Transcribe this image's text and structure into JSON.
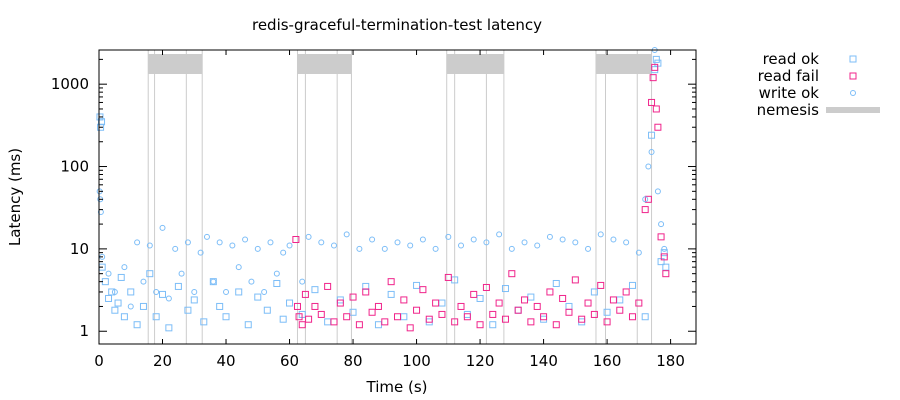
{
  "chart_data": {
    "type": "scatter",
    "title": "redis-graceful-termination-test latency",
    "xlabel": "Time (s)",
    "ylabel": "Latency (ms)",
    "xlim": [
      0,
      188
    ],
    "ylim": [
      0.7,
      2600
    ],
    "y_scale": "log",
    "x_ticks": [
      0,
      20,
      40,
      60,
      80,
      100,
      120,
      140,
      160,
      180
    ],
    "y_ticks": [
      1,
      10,
      100,
      1000
    ],
    "grid": false,
    "legend_position": "right-outside",
    "colors": {
      "read_ok": "#7cbdf7",
      "read_fail": "#f0248b",
      "write_ok": "#7cbdf7",
      "nemesis": "#cccccc"
    },
    "legend": [
      {
        "label": "read ok",
        "marker": "square",
        "color": "#7cbdf7"
      },
      {
        "label": "read fail",
        "marker": "square",
        "color": "#f0248b"
      },
      {
        "label": "write ok",
        "marker": "circle",
        "color": "#7cbdf7"
      },
      {
        "label": "nemesis",
        "marker": "bar",
        "color": "#cccccc"
      }
    ],
    "nemesis": [
      {
        "start": 15.5,
        "end": 32.5,
        "lines": [
          15.5,
          17.5,
          27.5,
          32.5
        ]
      },
      {
        "start": 62.5,
        "end": 79.5,
        "lines": [
          62.5,
          65,
          75,
          79.5
        ]
      },
      {
        "start": 109.5,
        "end": 127.5,
        "lines": [
          109.5,
          112,
          122,
          127.5
        ]
      },
      {
        "start": 156.5,
        "end": 174,
        "lines": [
          156.5,
          159.5,
          169.5,
          174
        ]
      }
    ],
    "series": [
      {
        "name": "read ok",
        "marker": "square",
        "points": [
          [
            0.3,
            400
          ],
          [
            0.5,
            300
          ],
          [
            0.8,
            350
          ],
          [
            1,
            6
          ],
          [
            2,
            4
          ],
          [
            3,
            2.5
          ],
          [
            4,
            3
          ],
          [
            5,
            1.8
          ],
          [
            6,
            2.2
          ],
          [
            7,
            4.5
          ],
          [
            8,
            1.5
          ],
          [
            10,
            3
          ],
          [
            12,
            1.2
          ],
          [
            14,
            2
          ],
          [
            16,
            5
          ],
          [
            18,
            1.5
          ],
          [
            20,
            2.8
          ],
          [
            22,
            1.1
          ],
          [
            25,
            3.5
          ],
          [
            28,
            1.8
          ],
          [
            30,
            2.4
          ],
          [
            33,
            1.3
          ],
          [
            36,
            4
          ],
          [
            38,
            2
          ],
          [
            40,
            1.5
          ],
          [
            44,
            3
          ],
          [
            47,
            1.2
          ],
          [
            50,
            2.6
          ],
          [
            53,
            1.8
          ],
          [
            56,
            3.8
          ],
          [
            58,
            1.4
          ],
          [
            60,
            2.2
          ],
          [
            64,
            1.6
          ],
          [
            68,
            3.2
          ],
          [
            72,
            1.3
          ],
          [
            76,
            2.4
          ],
          [
            80,
            1.7
          ],
          [
            84,
            3.5
          ],
          [
            88,
            1.2
          ],
          [
            92,
            2.8
          ],
          [
            96,
            1.5
          ],
          [
            100,
            3.6
          ],
          [
            104,
            1.3
          ],
          [
            108,
            2.2
          ],
          [
            112,
            4.2
          ],
          [
            116,
            1.6
          ],
          [
            120,
            2.5
          ],
          [
            124,
            1.2
          ],
          [
            128,
            3.3
          ],
          [
            132,
            1.8
          ],
          [
            136,
            2.6
          ],
          [
            140,
            1.4
          ],
          [
            144,
            3.8
          ],
          [
            148,
            2
          ],
          [
            152,
            1.3
          ],
          [
            156,
            3
          ],
          [
            160,
            1.7
          ],
          [
            164,
            2.4
          ],
          [
            168,
            3.6
          ],
          [
            172,
            1.5
          ],
          [
            174,
            240
          ],
          [
            175,
            1500
          ],
          [
            175.5,
            2000
          ],
          [
            176,
            1800
          ],
          [
            177,
            7
          ],
          [
            178,
            9
          ],
          [
            178.5,
            6
          ]
        ]
      },
      {
        "name": "read fail",
        "marker": "square",
        "points": [
          [
            62,
            13
          ],
          [
            62.5,
            2
          ],
          [
            63,
            1.5
          ],
          [
            64,
            1.2
          ],
          [
            65,
            2.8
          ],
          [
            66,
            1.4
          ],
          [
            68,
            2
          ],
          [
            70,
            1.6
          ],
          [
            72,
            3.5
          ],
          [
            74,
            1.3
          ],
          [
            76,
            2.2
          ],
          [
            78,
            1.5
          ],
          [
            80,
            2.6
          ],
          [
            82,
            1.2
          ],
          [
            84,
            3
          ],
          [
            86,
            1.7
          ],
          [
            88,
            2
          ],
          [
            90,
            1.3
          ],
          [
            92,
            4
          ],
          [
            94,
            1.5
          ],
          [
            96,
            2.4
          ],
          [
            98,
            1.1
          ],
          [
            100,
            1.8
          ],
          [
            102,
            3.2
          ],
          [
            104,
            1.4
          ],
          [
            106,
            2.2
          ],
          [
            108,
            1.6
          ],
          [
            110,
            4.5
          ],
          [
            112,
            1.3
          ],
          [
            114,
            2
          ],
          [
            116,
            1.5
          ],
          [
            118,
            2.8
          ],
          [
            120,
            1.2
          ],
          [
            122,
            3.4
          ],
          [
            124,
            1.6
          ],
          [
            126,
            2.2
          ],
          [
            128,
            1.4
          ],
          [
            130,
            5
          ],
          [
            132,
            1.8
          ],
          [
            134,
            2.4
          ],
          [
            136,
            1.3
          ],
          [
            138,
            2
          ],
          [
            140,
            1.5
          ],
          [
            142,
            3
          ],
          [
            144,
            1.2
          ],
          [
            146,
            2.5
          ],
          [
            148,
            1.7
          ],
          [
            150,
            4.2
          ],
          [
            152,
            1.4
          ],
          [
            154,
            2.2
          ],
          [
            156,
            1.6
          ],
          [
            158,
            3.6
          ],
          [
            160,
            1.3
          ],
          [
            162,
            2.4
          ],
          [
            164,
            1.8
          ],
          [
            166,
            3
          ],
          [
            168,
            1.5
          ],
          [
            170,
            2.2
          ],
          [
            172,
            30
          ],
          [
            173,
            40
          ],
          [
            174,
            600
          ],
          [
            174.5,
            1200
          ],
          [
            175,
            1600
          ],
          [
            175.5,
            500
          ],
          [
            176,
            300
          ],
          [
            177,
            14
          ],
          [
            178,
            8
          ],
          [
            178.5,
            5
          ]
        ]
      },
      {
        "name": "write ok",
        "marker": "circle",
        "points": [
          [
            0.2,
            50
          ],
          [
            0.4,
            40
          ],
          [
            0.6,
            28
          ],
          [
            1,
            8
          ],
          [
            3,
            5
          ],
          [
            5,
            3
          ],
          [
            8,
            6
          ],
          [
            10,
            2
          ],
          [
            12,
            12
          ],
          [
            14,
            4
          ],
          [
            16,
            11
          ],
          [
            18,
            3
          ],
          [
            20,
            18
          ],
          [
            22,
            2.5
          ],
          [
            24,
            10
          ],
          [
            26,
            5
          ],
          [
            28,
            12
          ],
          [
            30,
            3
          ],
          [
            32,
            9
          ],
          [
            34,
            14
          ],
          [
            36,
            4
          ],
          [
            38,
            12
          ],
          [
            40,
            3
          ],
          [
            42,
            11
          ],
          [
            44,
            6
          ],
          [
            46,
            13
          ],
          [
            48,
            4
          ],
          [
            50,
            10
          ],
          [
            52,
            3
          ],
          [
            54,
            12
          ],
          [
            56,
            5
          ],
          [
            58,
            9
          ],
          [
            60,
            11
          ],
          [
            64,
            4
          ],
          [
            66,
            14
          ],
          [
            70,
            12
          ],
          [
            74,
            11
          ],
          [
            78,
            15
          ],
          [
            82,
            10
          ],
          [
            86,
            13
          ],
          [
            90,
            10
          ],
          [
            94,
            12
          ],
          [
            98,
            11
          ],
          [
            102,
            13
          ],
          [
            106,
            10
          ],
          [
            110,
            14
          ],
          [
            114,
            11
          ],
          [
            118,
            13
          ],
          [
            122,
            12
          ],
          [
            126,
            15
          ],
          [
            130,
            10
          ],
          [
            134,
            12
          ],
          [
            138,
            11
          ],
          [
            142,
            14
          ],
          [
            146,
            13
          ],
          [
            150,
            12
          ],
          [
            154,
            10
          ],
          [
            158,
            15
          ],
          [
            162,
            13
          ],
          [
            166,
            12
          ],
          [
            170,
            9
          ],
          [
            172,
            40
          ],
          [
            173,
            100
          ],
          [
            174,
            150
          ],
          [
            175,
            2600
          ],
          [
            176,
            50
          ],
          [
            177,
            20
          ],
          [
            178,
            10
          ]
        ]
      }
    ]
  }
}
